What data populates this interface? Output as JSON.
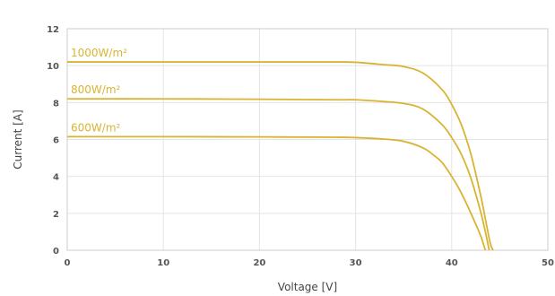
{
  "chart_data": {
    "type": "line",
    "title": "",
    "xlabel": "Voltage [V]",
    "ylabel": "Current [A]",
    "xlim": [
      0,
      50
    ],
    "ylim": [
      0,
      12
    ],
    "xticks": [
      0,
      10,
      20,
      30,
      40,
      50
    ],
    "yticks": [
      0,
      2,
      4,
      6,
      8,
      10,
      12
    ],
    "grid": true,
    "line_color": "#d9b433",
    "series": [
      {
        "name": "1000W/m²",
        "x": [
          0,
          10,
          20,
          28,
          30,
          33,
          35,
          37,
          39,
          40,
          41,
          42,
          43,
          43.5,
          44,
          44.3
        ],
        "y": [
          10.2,
          10.2,
          10.2,
          10.2,
          10.18,
          10.05,
          9.95,
          9.6,
          8.7,
          7.9,
          6.8,
          5.2,
          3.0,
          1.7,
          0.4,
          0
        ]
      },
      {
        "name": "800W/m²",
        "x": [
          0,
          10,
          20,
          28,
          30,
          33,
          35,
          37,
          39,
          40,
          41,
          42,
          43,
          43.5,
          43.9
        ],
        "y": [
          8.2,
          8.2,
          8.18,
          8.15,
          8.15,
          8.05,
          7.95,
          7.65,
          6.8,
          6.1,
          5.2,
          3.9,
          2.1,
          1.0,
          0
        ]
      },
      {
        "name": "600W/m²",
        "x": [
          0,
          10,
          20,
          28,
          30,
          33,
          35,
          37,
          38,
          39,
          40,
          41,
          42,
          43,
          43.5
        ],
        "y": [
          6.15,
          6.15,
          6.14,
          6.12,
          6.1,
          6.02,
          5.9,
          5.55,
          5.2,
          4.75,
          4.0,
          3.1,
          2.0,
          0.8,
          0
        ]
      }
    ]
  }
}
